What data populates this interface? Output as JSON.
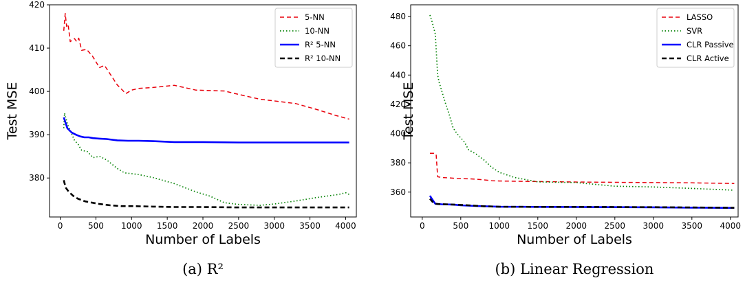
{
  "chart_data": [
    {
      "type": "line",
      "caption": "(a) R²",
      "xlabel": "Number of Labels",
      "ylabel": "Test MSE",
      "xlim": [
        -150,
        4150
      ],
      "ylim": [
        371,
        420
      ],
      "xticks": [
        0,
        500,
        1000,
        1500,
        2000,
        2500,
        3000,
        3500,
        4000
      ],
      "yticks": [
        380,
        390,
        400,
        410,
        420
      ],
      "grid": false,
      "legend_position": "top-right",
      "series": [
        {
          "name": "5-NN",
          "color": "#e8000b",
          "dash": "6,4",
          "width": 1.5,
          "points": [
            [
              50,
              414
            ],
            [
              70,
              418
            ],
            [
              90,
              415
            ],
            [
              110,
              415.5
            ],
            [
              140,
              411.5
            ],
            [
              200,
              412.2
            ],
            [
              230,
              411.5
            ],
            [
              260,
              412.3
            ],
            [
              300,
              409.5
            ],
            [
              370,
              409.7
            ],
            [
              450,
              408.2
            ],
            [
              550,
              405.5
            ],
            [
              620,
              406
            ],
            [
              700,
              404
            ],
            [
              800,
              401.5
            ],
            [
              920,
              399.5
            ],
            [
              1000,
              400.3
            ],
            [
              1100,
              400.7
            ],
            [
              1300,
              400.9
            ],
            [
              1600,
              401.4
            ],
            [
              1900,
              400.3
            ],
            [
              2100,
              400.2
            ],
            [
              2300,
              400.1
            ],
            [
              2500,
              399.3
            ],
            [
              2800,
              398.2
            ],
            [
              3000,
              397.8
            ],
            [
              3300,
              397.2
            ],
            [
              3600,
              395.8
            ],
            [
              3850,
              394.5
            ],
            [
              4050,
              393.6
            ]
          ]
        },
        {
          "name": "10-NN",
          "color": "#008000",
          "dash": "1.5,3",
          "width": 1.7,
          "points": [
            [
              50,
              391.5
            ],
            [
              60,
              395
            ],
            [
              80,
              393.8
            ],
            [
              100,
              392.5
            ],
            [
              150,
              390.6
            ],
            [
              200,
              388.7
            ],
            [
              250,
              387.8
            ],
            [
              300,
              386.4
            ],
            [
              380,
              386.1
            ],
            [
              460,
              384.7
            ],
            [
              550,
              385
            ],
            [
              650,
              384.2
            ],
            [
              800,
              382.2
            ],
            [
              900,
              381.2
            ],
            [
              1100,
              380.8
            ],
            [
              1300,
              380.1
            ],
            [
              1600,
              378.7
            ],
            [
              1900,
              376.8
            ],
            [
              2100,
              375.8
            ],
            [
              2300,
              374.3
            ],
            [
              2500,
              373.9
            ],
            [
              2800,
              373.7
            ],
            [
              3000,
              374
            ],
            [
              3300,
              374.7
            ],
            [
              3600,
              375.5
            ],
            [
              3900,
              376.2
            ],
            [
              4000,
              376.6
            ],
            [
              4050,
              376.2
            ]
          ]
        },
        {
          "name": "R² 5-NN",
          "color": "#0000ff",
          "dash": "",
          "width": 2.6,
          "points": [
            [
              50,
              394
            ],
            [
              70,
              393
            ],
            [
              100,
              391.5
            ],
            [
              130,
              391
            ],
            [
              160,
              390.5
            ],
            [
              220,
              390
            ],
            [
              280,
              389.6
            ],
            [
              340,
              389.4
            ],
            [
              400,
              389.4
            ],
            [
              460,
              389.2
            ],
            [
              550,
              389.1
            ],
            [
              650,
              389
            ],
            [
              800,
              388.7
            ],
            [
              950,
              388.6
            ],
            [
              1100,
              388.6
            ],
            [
              1300,
              388.5
            ],
            [
              1600,
              388.3
            ],
            [
              2000,
              388.3
            ],
            [
              2500,
              388.2
            ],
            [
              3000,
              388.2
            ],
            [
              3500,
              388.2
            ],
            [
              4050,
              388.2
            ]
          ]
        },
        {
          "name": "R² 10-NN",
          "color": "#000000",
          "dash": "7,4",
          "width": 2.6,
          "points": [
            [
              50,
              379.5
            ],
            [
              60,
              378.8
            ],
            [
              80,
              377.7
            ],
            [
              120,
              376.8
            ],
            [
              180,
              375.9
            ],
            [
              250,
              375.2
            ],
            [
              350,
              374.6
            ],
            [
              450,
              374.3
            ],
            [
              550,
              374
            ],
            [
              700,
              373.7
            ],
            [
              850,
              373.5
            ],
            [
              1000,
              373.5
            ],
            [
              1300,
              373.4
            ],
            [
              1600,
              373.3
            ],
            [
              2000,
              373.3
            ],
            [
              2500,
              373.2
            ],
            [
              3000,
              373.2
            ],
            [
              3500,
              373.2
            ],
            [
              4050,
              373.2
            ]
          ]
        }
      ]
    },
    {
      "type": "line",
      "caption": "(b) Linear Regression",
      "xlabel": "Number of Labels",
      "ylabel": "Test MSE",
      "xlim": [
        -150,
        4100
      ],
      "ylim": [
        343,
        488
      ],
      "xticks": [
        0,
        500,
        1000,
        1500,
        2000,
        2500,
        3000,
        3500,
        4000
      ],
      "yticks": [
        360,
        380,
        400,
        420,
        440,
        460,
        480
      ],
      "grid": false,
      "legend_position": "top-right",
      "series": [
        {
          "name": "LASSO",
          "color": "#e8000b",
          "dash": "6,4",
          "width": 1.5,
          "points": [
            [
              100,
              386.5
            ],
            [
              150,
              386.5
            ],
            [
              180,
              385.9
            ],
            [
              200,
              370.5
            ],
            [
              250,
              370
            ],
            [
              350,
              369.7
            ],
            [
              450,
              369.3
            ],
            [
              600,
              369.1
            ],
            [
              700,
              368.8
            ],
            [
              800,
              368.4
            ],
            [
              900,
              367.8
            ],
            [
              1000,
              367.6
            ],
            [
              1500,
              367.2
            ],
            [
              2000,
              366.9
            ],
            [
              2500,
              366.7
            ],
            [
              3000,
              366.5
            ],
            [
              3500,
              366.3
            ],
            [
              4050,
              365.9
            ]
          ]
        },
        {
          "name": "SVR",
          "color": "#008000",
          "dash": "1.5,3",
          "width": 1.7,
          "points": [
            [
              100,
              481
            ],
            [
              130,
              476
            ],
            [
              170,
              468
            ],
            [
              200,
              440
            ],
            [
              220,
              435
            ],
            [
              260,
              428
            ],
            [
              300,
              421
            ],
            [
              350,
              413
            ],
            [
              400,
              404
            ],
            [
              450,
              400
            ],
            [
              500,
              397
            ],
            [
              550,
              394
            ],
            [
              600,
              389
            ],
            [
              700,
              386
            ],
            [
              800,
              382
            ],
            [
              900,
              377
            ],
            [
              1000,
              373.5
            ],
            [
              1200,
              370
            ],
            [
              1500,
              367
            ],
            [
              2000,
              366.5
            ],
            [
              2500,
              364
            ],
            [
              3000,
              363.5
            ],
            [
              3500,
              362.5
            ],
            [
              4050,
              361.3
            ]
          ]
        },
        {
          "name": "CLR Passive",
          "color": "#0000ff",
          "dash": "",
          "width": 2.6,
          "points": [
            [
              100,
              357.5
            ],
            [
              130,
              355
            ],
            [
              170,
              352
            ],
            [
              250,
              351.7
            ],
            [
              400,
              351.5
            ],
            [
              500,
              351
            ],
            [
              700,
              350.5
            ],
            [
              1000,
              350
            ],
            [
              1500,
              349.9
            ],
            [
              2000,
              349.8
            ],
            [
              2500,
              349.7
            ],
            [
              3000,
              349.6
            ],
            [
              3500,
              349.4
            ],
            [
              4050,
              349.2
            ]
          ]
        },
        {
          "name": "CLR Active",
          "color": "#000000",
          "dash": "7,4",
          "width": 2.6,
          "points": [
            [
              100,
              355.5
            ],
            [
              130,
              353.5
            ],
            [
              160,
              352.3
            ],
            [
              200,
              351.8
            ],
            [
              400,
              351.5
            ],
            [
              600,
              351
            ],
            [
              800,
              350.3
            ],
            [
              1000,
              350
            ],
            [
              1500,
              349.9
            ],
            [
              2000,
              349.9
            ],
            [
              2500,
              349.8
            ],
            [
              3000,
              349.7
            ],
            [
              3500,
              349.5
            ],
            [
              4050,
              349.3
            ]
          ]
        }
      ]
    }
  ]
}
